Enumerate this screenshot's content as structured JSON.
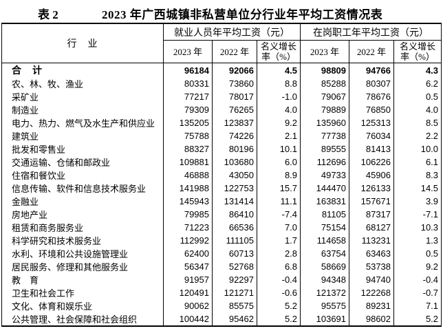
{
  "title": {
    "label": "表 2",
    "text": "2023 年广西城镇非私营单位分行业年平均工资情况表"
  },
  "table": {
    "industry_header": "行　业",
    "group1_header": "就业人员年平均工资（元）",
    "group2_header": "在岗职工年平均工资（元）",
    "col_headers": [
      "2023 年",
      "2022 年",
      "名义增长率（%）",
      "2023 年",
      "2022 年",
      "名义增长率（%）"
    ],
    "rows": [
      {
        "name": "合　计",
        "bold": true,
        "values": [
          "96184",
          "92066",
          "4.5",
          "98809",
          "94766",
          "4.3"
        ]
      },
      {
        "name": "农、林、牧、渔业",
        "bold": false,
        "values": [
          "80331",
          "73860",
          "8.8",
          "85288",
          "80307",
          "6.2"
        ]
      },
      {
        "name": "采矿业",
        "bold": false,
        "values": [
          "77217",
          "78017",
          "-1.0",
          "79067",
          "78676",
          "0.5"
        ]
      },
      {
        "name": "制造业",
        "bold": false,
        "values": [
          "79309",
          "76265",
          "4.0",
          "79889",
          "76850",
          "4.0"
        ]
      },
      {
        "name": "电力、热力、燃气及水生产和供应业",
        "bold": false,
        "values": [
          "135205",
          "123837",
          "9.2",
          "135960",
          "125313",
          "8.5"
        ]
      },
      {
        "name": "建筑业",
        "bold": false,
        "values": [
          "75788",
          "74226",
          "2.1",
          "77738",
          "76034",
          "2.2"
        ]
      },
      {
        "name": "批发和零售业",
        "bold": false,
        "values": [
          "88327",
          "80196",
          "10.1",
          "89555",
          "81413",
          "10.0"
        ]
      },
      {
        "name": "交通运输、仓储和邮政业",
        "bold": false,
        "values": [
          "109881",
          "103680",
          "6.0",
          "112696",
          "106226",
          "6.1"
        ]
      },
      {
        "name": "住宿和餐饮业",
        "bold": false,
        "values": [
          "46888",
          "43050",
          "8.9",
          "49733",
          "45906",
          "8.3"
        ]
      },
      {
        "name": "信息传输、软件和信息技术服务业",
        "bold": false,
        "values": [
          "141988",
          "122753",
          "15.7",
          "144470",
          "126133",
          "14.5"
        ]
      },
      {
        "name": "金融业",
        "bold": false,
        "values": [
          "145943",
          "131414",
          "11.1",
          "163831",
          "157671",
          "3.9"
        ]
      },
      {
        "name": "房地产业",
        "bold": false,
        "values": [
          "79985",
          "86410",
          "-7.4",
          "81105",
          "87317",
          "-7.1"
        ]
      },
      {
        "name": "租赁和商务服务业",
        "bold": false,
        "values": [
          "71223",
          "66536",
          "7.0",
          "75154",
          "68127",
          "10.3"
        ]
      },
      {
        "name": "科学研究和技术服务业",
        "bold": false,
        "values": [
          "112992",
          "111105",
          "1.7",
          "114658",
          "113231",
          "1.3"
        ]
      },
      {
        "name": "水利、环境和公共设施管理业",
        "bold": false,
        "values": [
          "62400",
          "60713",
          "2.8",
          "63754",
          "63463",
          "0.5"
        ]
      },
      {
        "name": "居民服务、修理和其他服务业",
        "bold": false,
        "values": [
          "56347",
          "52768",
          "6.8",
          "58669",
          "53738",
          "9.2"
        ]
      },
      {
        "name": "教　育",
        "bold": false,
        "values": [
          "91957",
          "92297",
          "-0.4",
          "94348",
          "94740",
          "-0.4"
        ]
      },
      {
        "name": "卫生和社会工作",
        "bold": false,
        "values": [
          "120491",
          "121271",
          "-0.6",
          "121372",
          "122268",
          "-0.7"
        ]
      },
      {
        "name": "文化、体育和娱乐业",
        "bold": false,
        "values": [
          "90062",
          "85575",
          "5.2",
          "95575",
          "89231",
          "7.1"
        ]
      },
      {
        "name": "公共管理、社会保障和社会组织",
        "bold": false,
        "values": [
          "100442",
          "95462",
          "5.2",
          "103691",
          "98602",
          "5.2"
        ]
      }
    ]
  }
}
